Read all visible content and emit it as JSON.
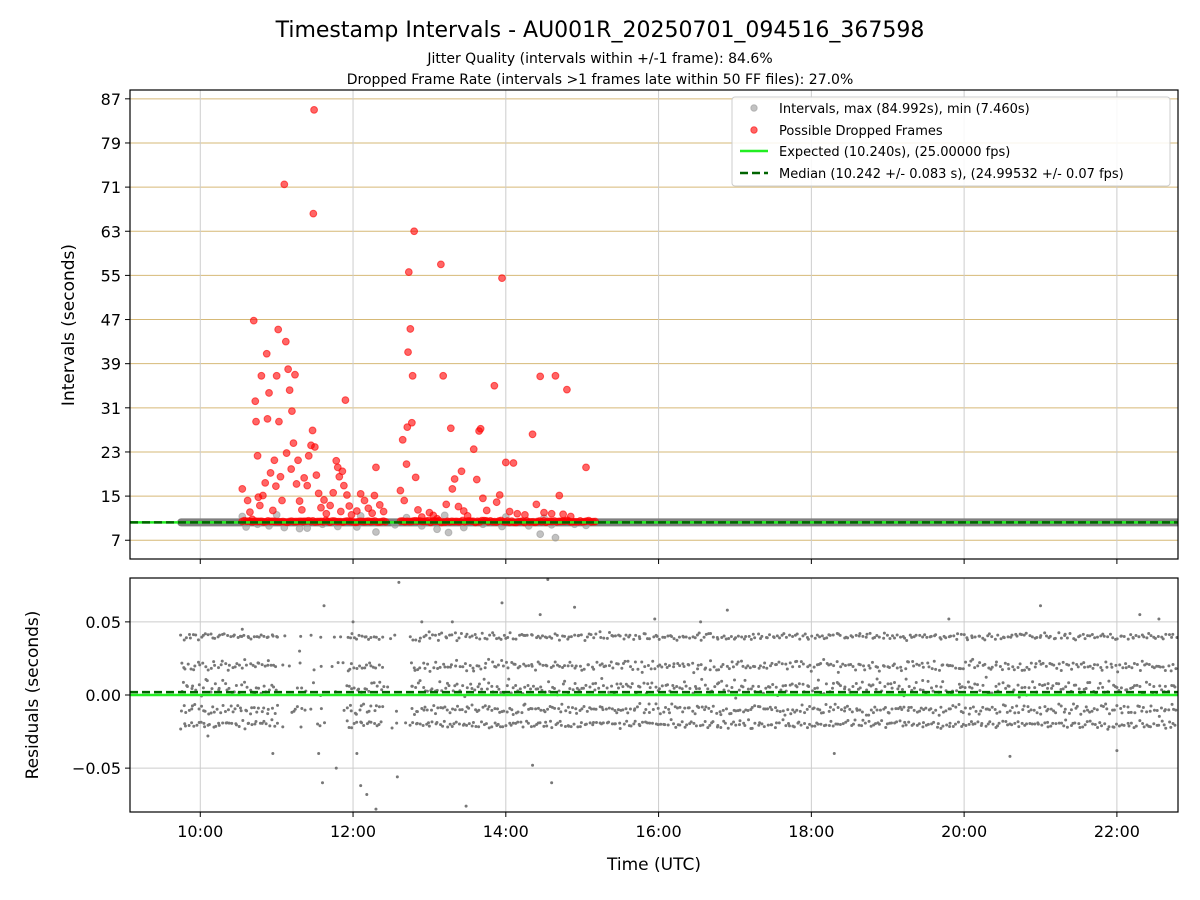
{
  "chart_data": [
    {
      "panel": "intervals",
      "type": "scatter",
      "title": "Timestamp Intervals - AU001R_20250701_094516_367598",
      "subtitle_lines": [
        "Jitter Quality (intervals within +/-1 frame): 84.6%",
        "Dropped Frame Rate (intervals >1 frames late within 50 FF files): 27.0%"
      ],
      "xlabel": "",
      "ylabel": "Intervals (seconds)",
      "x_unit": "hours UTC",
      "xlim": [
        9.08,
        22.8
      ],
      "ylim": [
        3.6,
        88.6
      ],
      "y_ticks": [
        "7",
        "15",
        "23",
        "31",
        "39",
        "47",
        "55",
        "63",
        "71",
        "79",
        "87"
      ],
      "x_tick_labels_visible": false,
      "grid": true,
      "legend_position": "top-right",
      "legend": [
        {
          "label": "Intervals, max (84.992s), min (7.460s)",
          "marker": "circle",
          "color": "#999999"
        },
        {
          "label": "Possible Dropped Frames",
          "marker": "circle",
          "color": "#ff0000"
        },
        {
          "label": "Expected (10.240s), (25.00000 fps)",
          "line": "solid",
          "color": "#22ee22"
        },
        {
          "label": "Median (10.242 +/- 0.083 s), (24.99532 +/- 0.07 fps)",
          "line": "dashed",
          "color": "#006400"
        }
      ],
      "expected_interval": 10.24,
      "median_interval": 10.242,
      "normal_band": {
        "x_range": [
          9.75,
          22.8
        ],
        "y": 10.24
      },
      "normal_points": [
        [
          10.6,
          9.4
        ],
        [
          10.75,
          9.9
        ],
        [
          10.9,
          9.6
        ],
        [
          11.1,
          9.3
        ],
        [
          11.3,
          9.1
        ],
        [
          11.4,
          9.2
        ],
        [
          11.6,
          9.9
        ],
        [
          11.8,
          9.5
        ],
        [
          12.05,
          9.4
        ],
        [
          12.3,
          8.5
        ],
        [
          12.55,
          9.8
        ],
        [
          12.9,
          9.6
        ],
        [
          13.1,
          9.0
        ],
        [
          13.25,
          8.4
        ],
        [
          13.45,
          9.3
        ],
        [
          13.7,
          9.9
        ],
        [
          13.95,
          9.5
        ],
        [
          14.3,
          9.6
        ],
        [
          14.45,
          8.1
        ],
        [
          14.6,
          9.8
        ],
        [
          14.65,
          7.46
        ],
        [
          14.9,
          9.9
        ],
        [
          15.05,
          9.7
        ],
        [
          10.55,
          11.3
        ],
        [
          11.0,
          11.6
        ],
        [
          12.1,
          11.4
        ],
        [
          12.7,
          11.1
        ],
        [
          13.2,
          11.5
        ],
        [
          14.0,
          11.2
        ],
        [
          14.5,
          11.0
        ]
      ],
      "dropped_points": [
        [
          10.55,
          16.3
        ],
        [
          10.62,
          14.2
        ],
        [
          10.65,
          12.1
        ],
        [
          10.68,
          10.8
        ],
        [
          10.7,
          46.8
        ],
        [
          10.72,
          32.2
        ],
        [
          10.73,
          28.5
        ],
        [
          10.75,
          22.3
        ],
        [
          10.76,
          14.8
        ],
        [
          10.78,
          13.3
        ],
        [
          10.8,
          36.8
        ],
        [
          10.82,
          15.1
        ],
        [
          10.85,
          17.4
        ],
        [
          10.87,
          40.8
        ],
        [
          10.88,
          29.0
        ],
        [
          10.9,
          33.7
        ],
        [
          10.92,
          19.2
        ],
        [
          10.95,
          12.4
        ],
        [
          10.97,
          21.5
        ],
        [
          10.99,
          16.8
        ],
        [
          11.0,
          36.8
        ],
        [
          11.02,
          45.2
        ],
        [
          11.03,
          28.5
        ],
        [
          11.05,
          18.5
        ],
        [
          11.07,
          14.2
        ],
        [
          11.1,
          71.5
        ],
        [
          11.12,
          43.0
        ],
        [
          11.13,
          22.8
        ],
        [
          11.15,
          38.0
        ],
        [
          11.17,
          34.2
        ],
        [
          11.19,
          19.9
        ],
        [
          11.2,
          30.4
        ],
        [
          11.22,
          24.6
        ],
        [
          11.24,
          37.0
        ],
        [
          11.26,
          17.2
        ],
        [
          11.28,
          21.5
        ],
        [
          11.3,
          14.1
        ],
        [
          11.33,
          12.5
        ],
        [
          11.36,
          18.3
        ],
        [
          11.4,
          16.9
        ],
        [
          11.42,
          22.3
        ],
        [
          11.45,
          24.2
        ],
        [
          11.47,
          26.9
        ],
        [
          11.48,
          66.2
        ],
        [
          11.49,
          85.0
        ],
        [
          11.5,
          23.9
        ],
        [
          11.52,
          18.8
        ],
        [
          11.55,
          15.5
        ],
        [
          11.58,
          12.9
        ],
        [
          11.62,
          14.3
        ],
        [
          11.65,
          11.8
        ],
        [
          11.7,
          13.3
        ],
        [
          11.74,
          15.6
        ],
        [
          11.78,
          21.4
        ],
        [
          11.8,
          20.2
        ],
        [
          11.82,
          18.5
        ],
        [
          11.84,
          12.2
        ],
        [
          11.86,
          19.5
        ],
        [
          11.88,
          16.9
        ],
        [
          11.9,
          32.4
        ],
        [
          11.92,
          15.2
        ],
        [
          11.95,
          13.2
        ],
        [
          11.98,
          11.6
        ],
        [
          12.05,
          12.3
        ],
        [
          12.1,
          15.4
        ],
        [
          12.15,
          14.2
        ],
        [
          12.2,
          12.8
        ],
        [
          12.25,
          11.9
        ],
        [
          12.28,
          15.1
        ],
        [
          12.3,
          20.2
        ],
        [
          12.35,
          13.4
        ],
        [
          12.4,
          12.2
        ],
        [
          12.62,
          16.0
        ],
        [
          12.65,
          25.2
        ],
        [
          12.67,
          14.2
        ],
        [
          12.7,
          20.8
        ],
        [
          12.71,
          27.5
        ],
        [
          12.72,
          41.1
        ],
        [
          12.73,
          55.6
        ],
        [
          12.75,
          45.3
        ],
        [
          12.77,
          28.3
        ],
        [
          12.78,
          36.8
        ],
        [
          12.8,
          63.0
        ],
        [
          12.82,
          18.4
        ],
        [
          12.85,
          12.5
        ],
        [
          12.9,
          11.2
        ],
        [
          13.0,
          12.0
        ],
        [
          13.05,
          11.5
        ],
        [
          13.1,
          10.9
        ],
        [
          13.15,
          57.0
        ],
        [
          13.18,
          36.8
        ],
        [
          13.22,
          13.5
        ],
        [
          13.28,
          27.3
        ],
        [
          13.3,
          16.3
        ],
        [
          13.33,
          18.1
        ],
        [
          13.38,
          13.1
        ],
        [
          13.42,
          19.5
        ],
        [
          13.45,
          12.3
        ],
        [
          13.5,
          11.4
        ],
        [
          13.58,
          23.5
        ],
        [
          13.62,
          18.0
        ],
        [
          13.65,
          26.8
        ],
        [
          13.67,
          27.2
        ],
        [
          13.7,
          14.6
        ],
        [
          13.75,
          12.4
        ],
        [
          13.85,
          35.0
        ],
        [
          13.88,
          13.9
        ],
        [
          13.92,
          15.2
        ],
        [
          13.95,
          54.5
        ],
        [
          14.0,
          21.1
        ],
        [
          14.05,
          12.2
        ],
        [
          14.1,
          21.0
        ],
        [
          14.15,
          11.8
        ],
        [
          14.25,
          11.6
        ],
        [
          14.35,
          26.2
        ],
        [
          14.4,
          13.5
        ],
        [
          14.45,
          36.7
        ],
        [
          14.5,
          12.0
        ],
        [
          14.6,
          11.8
        ],
        [
          14.65,
          36.8
        ],
        [
          14.7,
          15.1
        ],
        [
          14.75,
          11.7
        ],
        [
          14.8,
          34.3
        ],
        [
          14.85,
          11.3
        ],
        [
          15.05,
          20.2
        ]
      ]
    },
    {
      "panel": "residuals",
      "type": "scatter",
      "xlabel": "Time (UTC)",
      "ylabel": "Residuals (seconds)",
      "xlim": [
        9.08,
        22.8
      ],
      "ylim": [
        -0.08,
        0.08
      ],
      "x_ticks": [
        10,
        12,
        14,
        16,
        18,
        20,
        22
      ],
      "x_tick_labels": [
        "10:00",
        "12:00",
        "14:00",
        "16:00",
        "18:00",
        "20:00",
        "22:00"
      ],
      "y_ticks": [
        -0.05,
        0.0,
        0.05
      ],
      "y_tick_labels": [
        "−0.05",
        "0.00",
        "0.05"
      ],
      "grid": true,
      "expected_residual": 0.0,
      "median_residual": 0.002,
      "color": "#777777",
      "density_bands": [
        {
          "x_range": [
            9.75,
            22.8
          ],
          "center": 0.02,
          "spread": 0.004
        },
        {
          "x_range": [
            9.75,
            22.8
          ],
          "center": -0.01,
          "spread": 0.004
        },
        {
          "x_range": [
            9.75,
            22.8
          ],
          "center": 0.04,
          "spread": 0.003
        },
        {
          "x_range": [
            9.75,
            22.8
          ],
          "center": -0.02,
          "spread": 0.003
        },
        {
          "x_range": [
            9.75,
            22.8
          ],
          "center": 0.005,
          "spread": 0.006
        }
      ],
      "outliers": [
        [
          10.1,
          -0.028
        ],
        [
          10.55,
          0.045
        ],
        [
          10.95,
          -0.04
        ],
        [
          11.0,
          0.04
        ],
        [
          11.3,
          0.03
        ],
        [
          11.55,
          -0.04
        ],
        [
          11.6,
          -0.06
        ],
        [
          11.62,
          0.061
        ],
        [
          11.78,
          -0.05
        ],
        [
          12.0,
          0.05
        ],
        [
          12.05,
          -0.04
        ],
        [
          12.1,
          -0.062
        ],
        [
          12.18,
          -0.068
        ],
        [
          12.3,
          -0.078
        ],
        [
          12.58,
          -0.056
        ],
        [
          12.6,
          0.077
        ],
        [
          12.9,
          0.05
        ],
        [
          13.3,
          0.05
        ],
        [
          13.48,
          -0.076
        ],
        [
          13.95,
          0.063
        ],
        [
          14.35,
          -0.048
        ],
        [
          14.45,
          0.055
        ],
        [
          14.55,
          0.079
        ],
        [
          14.6,
          -0.06
        ],
        [
          14.9,
          0.06
        ],
        [
          15.95,
          0.052
        ],
        [
          16.55,
          0.05
        ],
        [
          16.9,
          0.058
        ],
        [
          18.3,
          -0.04
        ],
        [
          19.8,
          0.052
        ],
        [
          20.6,
          -0.042
        ],
        [
          21.0,
          0.061
        ],
        [
          22.0,
          -0.038
        ],
        [
          22.3,
          0.055
        ],
        [
          22.55,
          0.052
        ]
      ]
    }
  ]
}
